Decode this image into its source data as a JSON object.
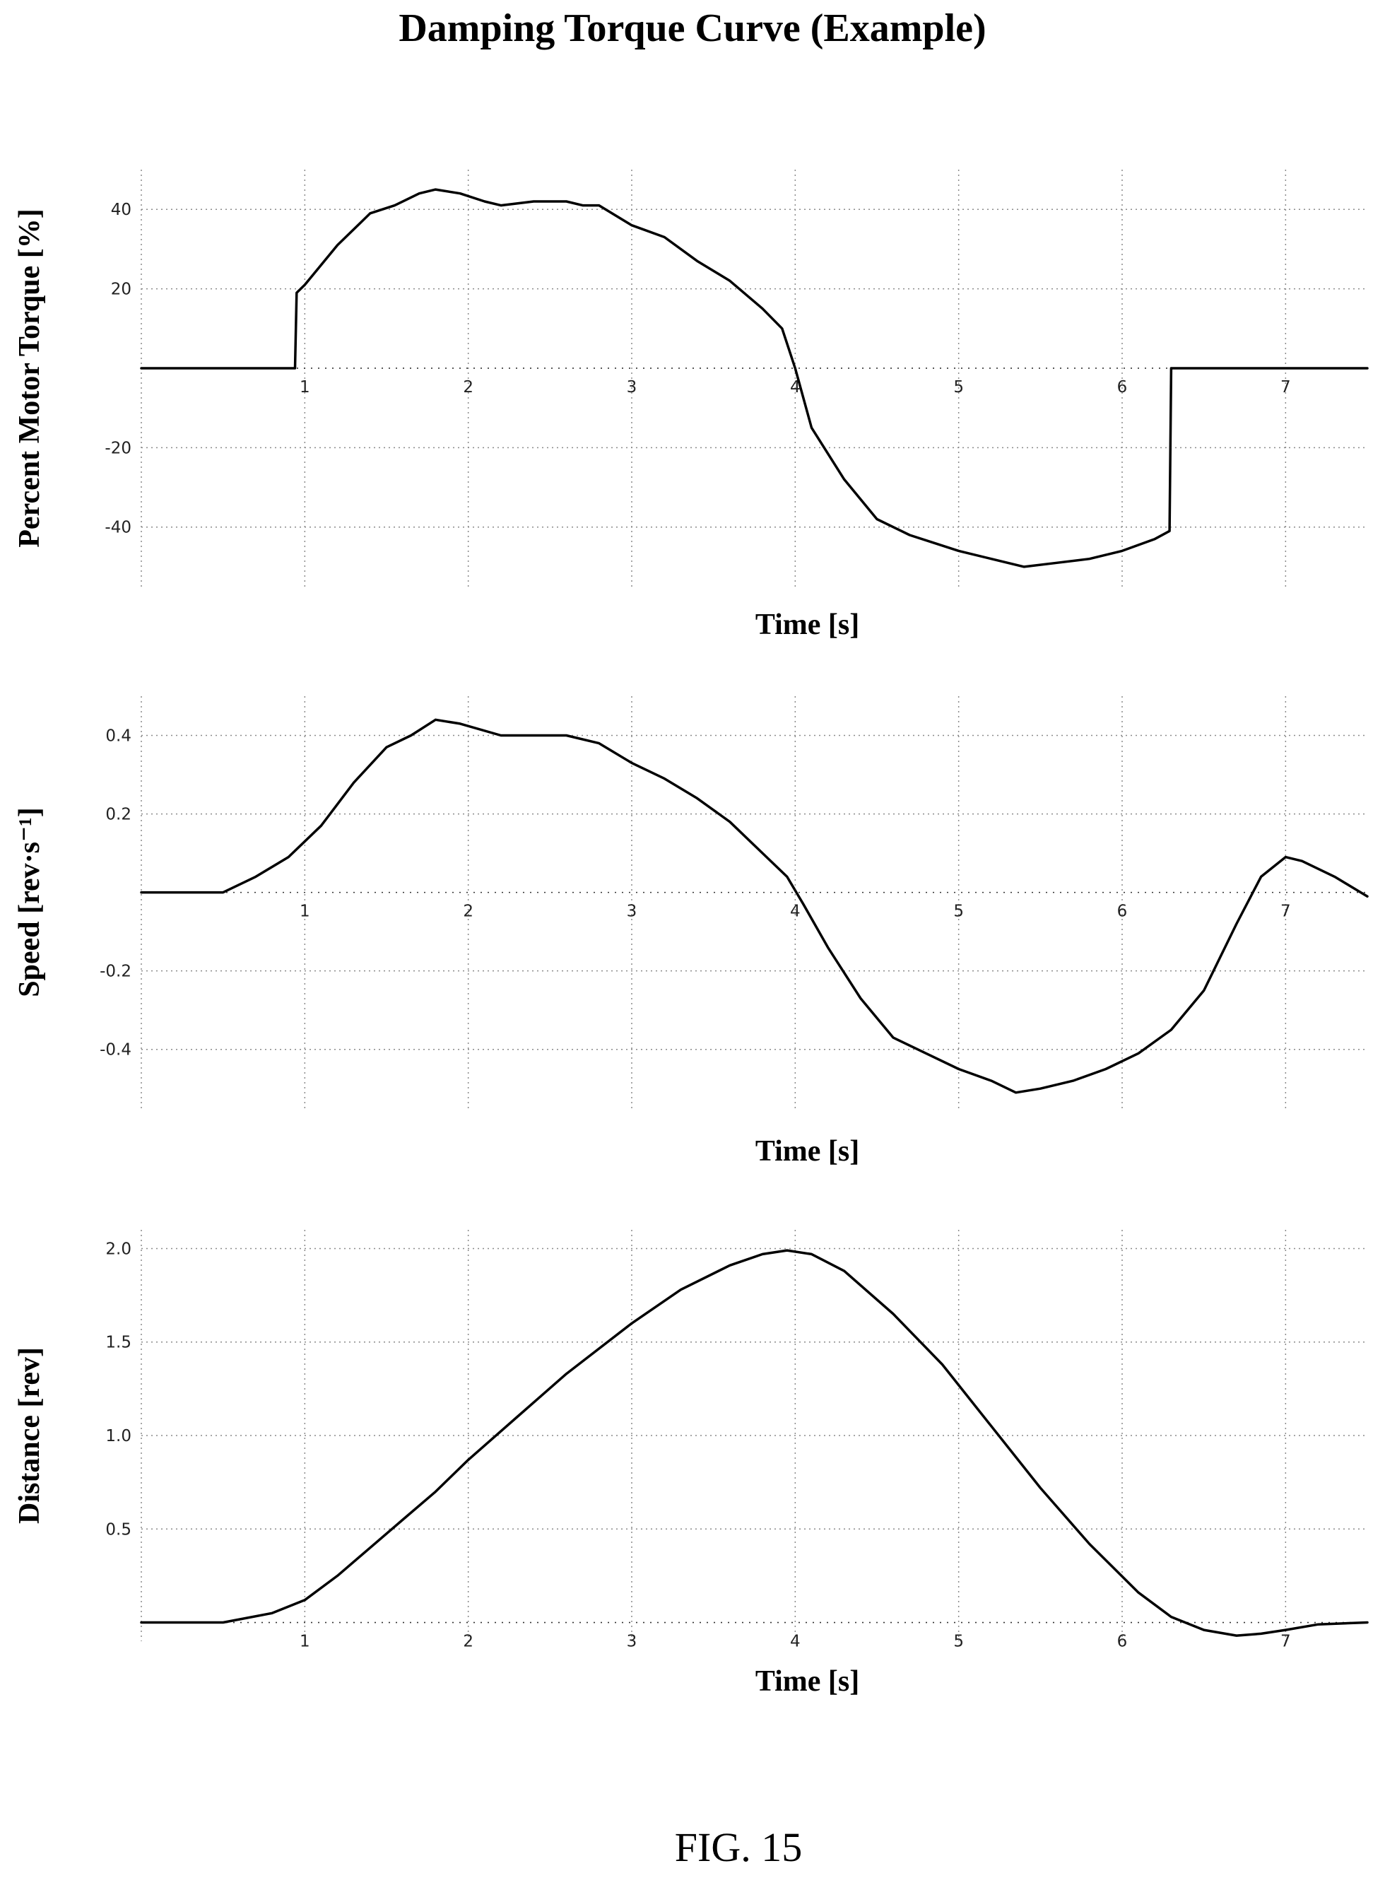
{
  "figure": {
    "title": "Damping Torque Curve (Example)",
    "caption": "FIG. 15"
  },
  "chart_data": [
    {
      "type": "line",
      "xlabel": "Time [s]",
      "ylabel": "Percent Motor Torque [%]",
      "xlim": [
        0,
        7.5
      ],
      "ylim": [
        -55,
        50
      ],
      "xticks": [
        1,
        2,
        3,
        4,
        5,
        6,
        7
      ],
      "yticks": [
        -40,
        -20,
        20,
        40
      ],
      "grid": true,
      "series": [
        {
          "x": [
            0,
            0.94,
            0.95,
            1.0,
            1.2,
            1.4,
            1.55,
            1.7,
            1.8,
            1.95,
            2.1,
            2.2,
            2.4,
            2.6,
            2.7,
            2.8,
            3.0,
            3.2,
            3.4,
            3.6,
            3.8,
            3.92,
            4.0,
            4.1,
            4.3,
            4.5,
            4.7,
            5.0,
            5.2,
            5.4,
            5.6,
            5.8,
            6.0,
            6.2,
            6.29,
            6.3,
            7.5
          ],
          "y": [
            0,
            0,
            19,
            21,
            31,
            39,
            41,
            44,
            45,
            44,
            42,
            41,
            42,
            42,
            41,
            41,
            36,
            33,
            27,
            22,
            15,
            10,
            0,
            -15,
            -28,
            -38,
            -42,
            -46,
            -48,
            -50,
            -49,
            -48,
            -46,
            -43,
            -41,
            0,
            0
          ]
        }
      ]
    },
    {
      "type": "line",
      "xlabel": "Time [s]",
      "ylabel": "Speed [rev·s⁻¹]",
      "xlim": [
        0,
        7.5
      ],
      "ylim": [
        -0.55,
        0.5
      ],
      "xticks": [
        1,
        2,
        3,
        4,
        5,
        6,
        7
      ],
      "yticks": [
        -0.4,
        -0.2,
        0.2,
        0.4
      ],
      "grid": true,
      "series": [
        {
          "x": [
            0,
            0.5,
            0.7,
            0.9,
            1.1,
            1.3,
            1.5,
            1.65,
            1.8,
            1.95,
            2.2,
            2.4,
            2.6,
            2.8,
            3.0,
            3.2,
            3.4,
            3.6,
            3.8,
            3.95,
            4.05,
            4.2,
            4.4,
            4.6,
            4.8,
            5.0,
            5.2,
            5.35,
            5.5,
            5.7,
            5.9,
            6.1,
            6.3,
            6.5,
            6.7,
            6.85,
            7.0,
            7.1,
            7.3,
            7.5
          ],
          "y": [
            0,
            0,
            0.04,
            0.09,
            0.17,
            0.28,
            0.37,
            0.4,
            0.44,
            0.43,
            0.4,
            0.4,
            0.4,
            0.38,
            0.33,
            0.29,
            0.24,
            0.18,
            0.1,
            0.04,
            -0.03,
            -0.14,
            -0.27,
            -0.37,
            -0.41,
            -0.45,
            -0.48,
            -0.51,
            -0.5,
            -0.48,
            -0.45,
            -0.41,
            -0.35,
            -0.25,
            -0.08,
            0.04,
            0.09,
            0.08,
            0.04,
            -0.01
          ]
        }
      ]
    },
    {
      "type": "line",
      "xlabel": "Time [s]",
      "ylabel": "Distance [rev]",
      "xlim": [
        0,
        7.5
      ],
      "ylim": [
        -0.1,
        2.1
      ],
      "xticks": [
        1,
        2,
        3,
        4,
        5,
        6,
        7
      ],
      "yticks": [
        0.5,
        1.0,
        1.5,
        2.0
      ],
      "ytick_labels": [
        "0.5",
        "1.0",
        "1.5",
        "2.0"
      ],
      "grid": true,
      "series": [
        {
          "x": [
            0,
            0.5,
            0.8,
            1.0,
            1.2,
            1.4,
            1.6,
            1.8,
            2.0,
            2.3,
            2.6,
            3.0,
            3.3,
            3.6,
            3.8,
            3.95,
            4.1,
            4.3,
            4.6,
            4.9,
            5.2,
            5.5,
            5.8,
            6.1,
            6.3,
            6.5,
            6.7,
            6.85,
            7.0,
            7.2,
            7.5
          ],
          "y": [
            0,
            0,
            0.05,
            0.12,
            0.25,
            0.4,
            0.55,
            0.7,
            0.87,
            1.1,
            1.33,
            1.6,
            1.78,
            1.91,
            1.97,
            1.99,
            1.97,
            1.88,
            1.65,
            1.38,
            1.05,
            0.72,
            0.42,
            0.16,
            0.03,
            -0.04,
            -0.07,
            -0.06,
            -0.04,
            -0.01,
            0
          ]
        }
      ]
    }
  ]
}
